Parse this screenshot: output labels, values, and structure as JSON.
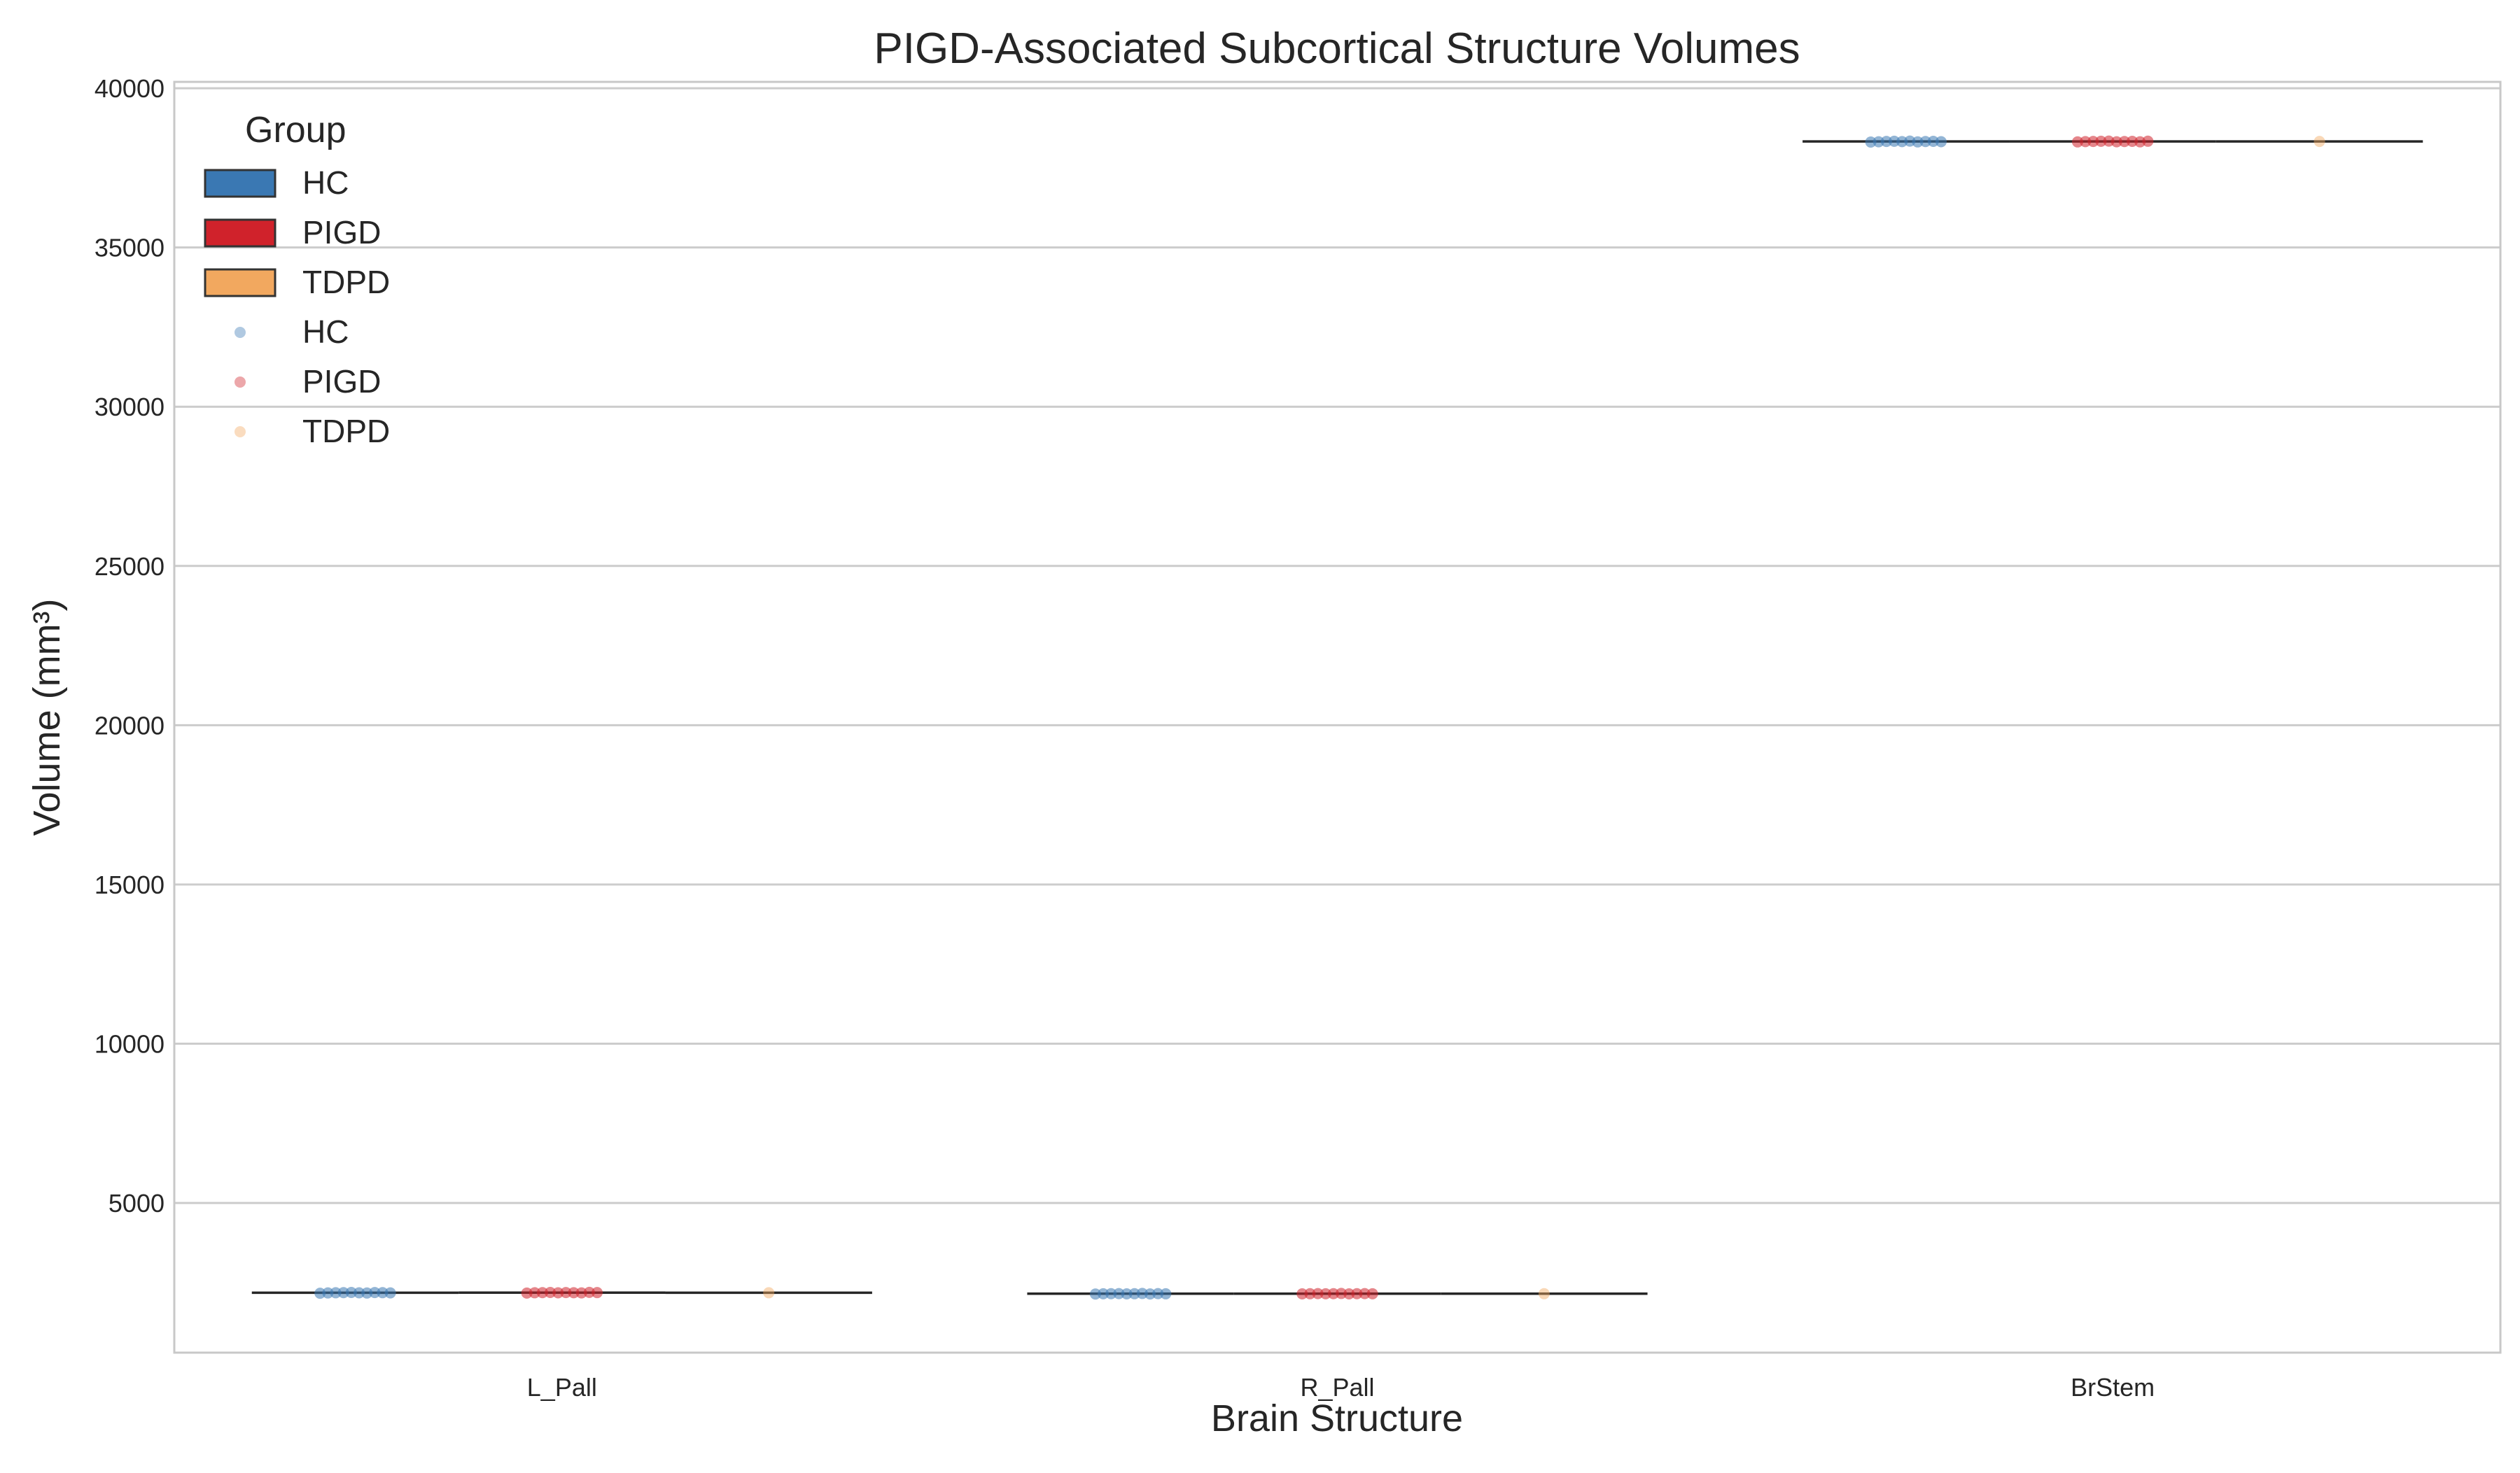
{
  "chart_data": {
    "type": "box",
    "title": "PIGD-Associated Subcortical Structure Volumes",
    "xlabel": "Brain Structure",
    "ylabel": "Volume (mm³)",
    "categories": [
      "L_Pall",
      "R_Pall",
      "BrStem"
    ],
    "yticks": [
      5000,
      10000,
      15000,
      20000,
      25000,
      30000,
      35000,
      40000
    ],
    "ylim": [
      300,
      40200
    ],
    "grid": true,
    "legend": {
      "title": "Group",
      "placement": "top-left",
      "box_entries": [
        "HC",
        "PIGD",
        "TDPD"
      ],
      "point_entries": [
        "HC",
        "PIGD",
        "TDPD"
      ]
    },
    "colors": {
      "HC": "#3a78b3",
      "PIGD": "#d0222b",
      "TDPD": "#f2a85f",
      "median_line": "#262626"
    },
    "series": [
      {
        "name": "HC",
        "values": [
          2180,
          2150,
          38330
        ],
        "points": [
          [
            2165,
            2175,
            2180,
            2185,
            2190,
            2178,
            2172,
            2188,
            2183,
            2176
          ],
          [
            2140,
            2148,
            2152,
            2155,
            2145,
            2150,
            2158,
            2143,
            2153,
            2147
          ],
          [
            38310,
            38320,
            38330,
            38335,
            38325,
            38340,
            38315,
            38328,
            38332,
            38322
          ]
        ]
      },
      {
        "name": "PIGD",
        "values": [
          2185,
          2150,
          38330
        ],
        "points": [
          [
            2170,
            2180,
            2185,
            2190,
            2178,
            2188,
            2182,
            2176,
            2192,
            2186
          ],
          [
            2145,
            2150,
            2155,
            2148,
            2152,
            2158,
            2146,
            2151,
            2154,
            2149
          ],
          [
            38315,
            38325,
            38330,
            38335,
            38340,
            38320,
            38328,
            38333,
            38318,
            38337
          ]
        ]
      },
      {
        "name": "TDPD",
        "values": [
          2180,
          2150,
          38330
        ],
        "points": [
          [
            2180
          ],
          [
            2150
          ],
          [
            38330
          ]
        ]
      }
    ]
  }
}
